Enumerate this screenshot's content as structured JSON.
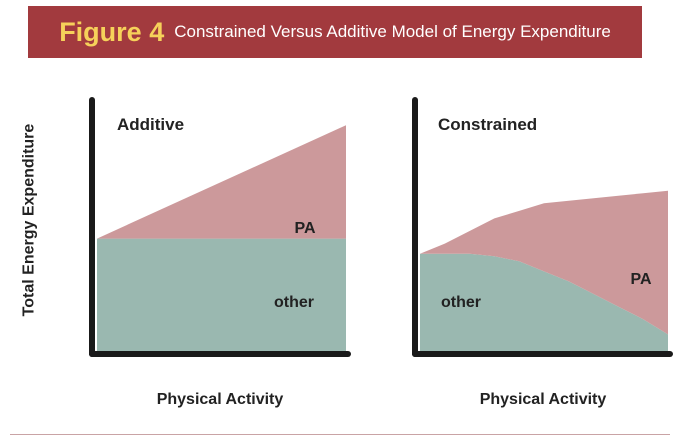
{
  "figure": {
    "label": "Figure 4",
    "title": "Constrained Versus Additive Model of Energy Expenditure"
  },
  "colors": {
    "banner": "#a23a3e",
    "label": "#f6d15a",
    "pa": "#cc999b",
    "other": "#9ab8b0",
    "axis": "#1a1a1a"
  },
  "chart_data": [
    {
      "type": "area",
      "title": "Additive",
      "xlabel": "Physical Activity",
      "ylabel": "Total Energy Expenditure",
      "x": [
        0,
        1
      ],
      "series": [
        {
          "name": "other",
          "values": [
            0.45,
            0.45
          ]
        },
        {
          "name": "PA",
          "values": [
            0.0,
            0.45
          ]
        }
      ],
      "ylim": [
        0,
        1
      ],
      "stacked": true
    },
    {
      "type": "area",
      "title": "Constrained",
      "xlabel": "Physical Activity",
      "ylabel": "Total Energy Expenditure",
      "x": [
        0,
        0.1,
        0.2,
        0.3,
        0.4,
        0.5,
        0.6,
        0.7,
        0.8,
        0.9,
        1.0
      ],
      "series": [
        {
          "name": "other",
          "values": [
            0.39,
            0.39,
            0.39,
            0.38,
            0.36,
            0.32,
            0.28,
            0.23,
            0.18,
            0.13,
            0.07
          ]
        },
        {
          "name": "PA",
          "values": [
            0.0,
            0.04,
            0.09,
            0.15,
            0.2,
            0.27,
            0.32,
            0.38,
            0.44,
            0.5,
            0.57
          ]
        }
      ],
      "ylim": [
        0,
        1
      ],
      "stacked": true
    }
  ]
}
